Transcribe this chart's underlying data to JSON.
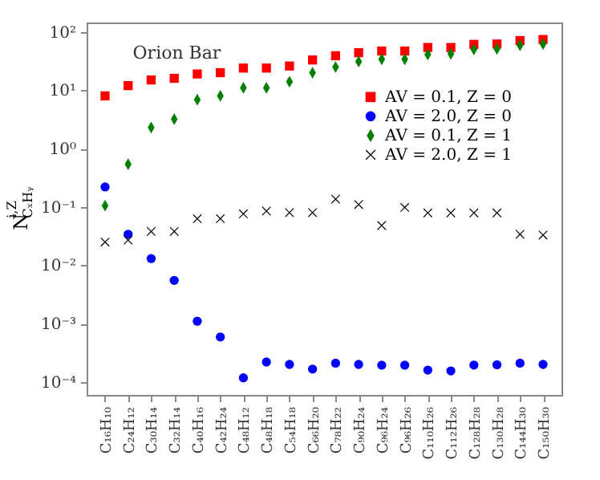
{
  "chart_data": {
    "type": "scatter",
    "annotations": [
      "Orion Bar"
    ],
    "ylabel": "N$^{i,Z}$$_{CₓHᵧ}$",
    "categories": [
      "C₁₆H₁₀",
      "C₂₄H₁₂",
      "C₃₀H₁₄",
      "C₃₂H₁₄",
      "C₄₀H₁₆",
      "C₄₂H₂₄",
      "C₄₈H₁₂",
      "C₄₈H₁₈",
      "C₅₄H₁₈",
      "C₆₆H₂₀",
      "C₇₈H₂₂",
      "C₉₀H₂₄",
      "C₉₆H₂₄",
      "C₉₆H₂₆",
      "C₁₁₀H₂₆",
      "C₁₁₂H₂₆",
      "C₁₂₈H₂₈",
      "C₁₃₀H₂₈",
      "C₁₄₄H₃₀",
      "C₁₅₀H₃₀"
    ],
    "series": [
      {
        "name": "AV = 0.1,  Z = 0",
        "color": "#ff0000",
        "marker": "square",
        "values": [
          8,
          12,
          15,
          16,
          19,
          20,
          24,
          24,
          26,
          33,
          39,
          44,
          47,
          47,
          54,
          54,
          61,
          62,
          71,
          74
        ]
      },
      {
        "name": "AV = 2.0,  Z = 0",
        "color": "#0000ff",
        "marker": "circle",
        "values": [
          0.22,
          0.034,
          0.013,
          0.0055,
          0.0011,
          0.00059,
          0.000118,
          0.00022,
          0.0002,
          0.000166,
          0.00021,
          0.0002,
          0.000194,
          0.000194,
          0.00016,
          0.000155,
          0.000195,
          0.000197,
          0.00021,
          0.0002
        ]
      },
      {
        "name": "AV = 0.1,  Z = 1",
        "color": "#008000",
        "marker": "diamond",
        "values": [
          0.105,
          0.54,
          2.3,
          3.2,
          6.9,
          8,
          11,
          11,
          14,
          20,
          25,
          31,
          34,
          34,
          41,
          42,
          50,
          51,
          59,
          62
        ]
      },
      {
        "name": "AV = 2.0,  Z = 1",
        "color": "#000000",
        "marker": "cross",
        "values": [
          0.025,
          0.027,
          0.038,
          0.038,
          0.063,
          0.063,
          0.076,
          0.085,
          0.08,
          0.08,
          0.136,
          0.11,
          0.048,
          0.098,
          0.079,
          0.079,
          0.079,
          0.079,
          0.034,
          0.033
        ]
      }
    ],
    "log": true,
    "ylim": [
      6e-05,
      145
    ],
    "yticks": [
      {
        "value": 0.0001,
        "label": "10⁻⁴"
      },
      {
        "value": 0.001,
        "label": "10⁻³"
      },
      {
        "value": 0.01,
        "label": "10⁻²"
      },
      {
        "value": 0.1,
        "label": "10⁻¹"
      },
      {
        "value": 1,
        "label": "10⁰"
      },
      {
        "value": 10,
        "label": "10¹"
      },
      {
        "value": 100,
        "label": "10²"
      }
    ],
    "grid": false,
    "legend": "right"
  }
}
